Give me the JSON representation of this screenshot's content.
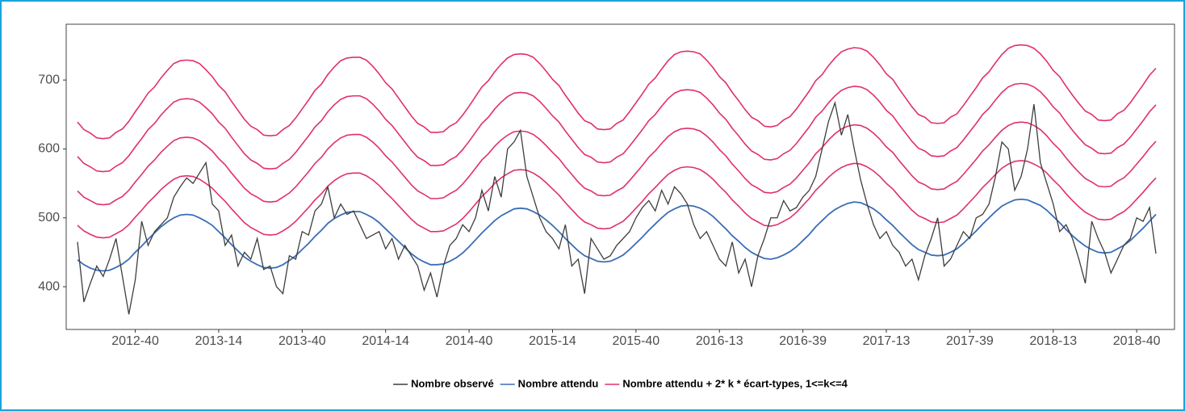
{
  "chart_data": {
    "type": "line",
    "categories": [
      null,
      null,
      null,
      null,
      null,
      null,
      null,
      null,
      null,
      "2012-40",
      null,
      null,
      null,
      null,
      null,
      null,
      null,
      null,
      null,
      null,
      null,
      null,
      "2013-14",
      null,
      null,
      null,
      null,
      null,
      null,
      null,
      null,
      null,
      null,
      null,
      null,
      "2013-40",
      null,
      null,
      null,
      null,
      null,
      null,
      null,
      null,
      null,
      null,
      null,
      null,
      "2014-14",
      null,
      null,
      null,
      null,
      null,
      null,
      null,
      null,
      null,
      null,
      null,
      null,
      "2014-40",
      null,
      null,
      null,
      null,
      null,
      null,
      null,
      null,
      null,
      null,
      null,
      null,
      "2015-14",
      null,
      null,
      null,
      null,
      null,
      null,
      null,
      null,
      null,
      null,
      null,
      null,
      "2015-40",
      null,
      null,
      null,
      null,
      null,
      null,
      null,
      null,
      null,
      null,
      null,
      null,
      "2016-13",
      null,
      null,
      null,
      null,
      null,
      null,
      null,
      null,
      null,
      null,
      null,
      null,
      "2016-39",
      null,
      null,
      null,
      null,
      null,
      null,
      null,
      null,
      null,
      null,
      null,
      null,
      "2017-13",
      null,
      null,
      null,
      null,
      null,
      null,
      null,
      null,
      null,
      null,
      null,
      null,
      "2017-39",
      null,
      null,
      null,
      null,
      null,
      null,
      null,
      null,
      null,
      null,
      null,
      null,
      "2018-13",
      null,
      null,
      null,
      null,
      null,
      null,
      null,
      null,
      null,
      null,
      null,
      null,
      "2018-40",
      null,
      null,
      null
    ],
    "series": [
      {
        "name": "Nombre observé",
        "color": "#3d3d3d",
        "values": [
          465,
          378,
          405,
          430,
          415,
          440,
          470,
          415,
          360,
          410,
          495,
          460,
          480,
          490,
          500,
          530,
          545,
          558,
          550,
          565,
          580,
          520,
          510,
          460,
          475,
          430,
          450,
          440,
          470,
          425,
          430,
          400,
          390,
          445,
          440,
          480,
          475,
          510,
          520,
          545,
          500,
          520,
          505,
          510,
          490,
          470,
          475,
          480,
          455,
          470,
          440,
          460,
          445,
          430,
          395,
          420,
          385,
          430,
          460,
          470,
          490,
          480,
          500,
          540,
          510,
          560,
          530,
          600,
          610,
          627,
          560,
          530,
          500,
          480,
          470,
          455,
          490,
          430,
          440,
          390,
          470,
          455,
          440,
          445,
          460,
          470,
          480,
          500,
          515,
          525,
          510,
          540,
          520,
          545,
          535,
          520,
          490,
          470,
          480,
          460,
          440,
          430,
          465,
          420,
          440,
          400,
          445,
          470,
          500,
          500,
          525,
          510,
          515,
          530,
          540,
          560,
          600,
          640,
          667,
          620,
          650,
          600,
          555,
          520,
          490,
          470,
          480,
          460,
          450,
          430,
          440,
          410,
          445,
          470,
          500,
          430,
          440,
          460,
          480,
          470,
          500,
          505,
          520,
          560,
          610,
          600,
          540,
          560,
          600,
          665,
          580,
          550,
          520,
          480,
          490,
          470,
          440,
          405,
          495,
          470,
          450,
          420,
          440,
          460,
          470,
          500,
          495,
          515,
          448
        ]
      },
      {
        "name": "Nombre attendu",
        "color": "#3a6db5",
        "values": [
          439,
          432,
          427,
          424,
          423,
          424,
          428,
          433,
          440,
          450,
          459,
          469,
          478,
          487,
          494,
          500,
          504,
          505,
          504,
          500,
          495,
          489,
          480,
          471,
          461,
          452,
          443,
          437,
          432,
          428,
          427,
          428,
          432,
          438,
          445,
          454,
          463,
          473,
          482,
          492,
          499,
          504,
          508,
          509,
          509,
          505,
          500,
          493,
          484,
          475,
          466,
          457,
          448,
          441,
          436,
          432,
          432,
          433,
          437,
          442,
          449,
          458,
          468,
          478,
          487,
          496,
          503,
          508,
          513,
          514,
          513,
          509,
          504,
          497,
          489,
          480,
          470,
          461,
          452,
          445,
          441,
          437,
          436,
          437,
          441,
          446,
          454,
          463,
          472,
          482,
          491,
          500,
          508,
          513,
          517,
          518,
          517,
          514,
          509,
          502,
          493,
          484,
          474,
          466,
          457,
          450,
          445,
          441,
          440,
          442,
          446,
          451,
          458,
          467,
          476,
          487,
          496,
          505,
          512,
          517,
          521,
          523,
          522,
          518,
          513,
          506,
          497,
          489,
          479,
          470,
          461,
          454,
          450,
          446,
          445,
          446,
          450,
          455,
          463,
          472,
          481,
          491,
          500,
          509,
          517,
          522,
          526,
          527,
          526,
          522,
          518,
          511,
          502,
          493,
          483,
          474,
          466,
          459,
          454,
          450,
          449,
          450,
          455,
          460,
          467,
          476,
          485,
          495,
          505
        ]
      }
    ],
    "bands": {
      "name": "Nombre attendu + 2* k * écart-types, 1<=k<=4",
      "color": "#e0306a",
      "lines": [
        [
          489,
          481,
          476,
          472,
          471,
          472,
          477,
          482,
          490,
          501,
          511,
          522,
          531,
          541,
          549,
          556,
          560,
          561,
          560,
          556,
          550,
          543,
          533,
          524,
          513,
          503,
          493,
          486,
          481,
          476,
          475,
          476,
          481,
          487,
          495,
          505,
          515,
          526,
          535,
          546,
          554,
          560,
          564,
          565,
          565,
          561,
          555,
          547,
          537,
          528,
          518,
          508,
          498,
          490,
          485,
          480,
          480,
          481,
          486,
          491,
          499,
          509,
          520,
          531,
          540,
          550,
          558,
          564,
          569,
          570,
          569,
          565,
          559,
          551,
          542,
          533,
          522,
          512,
          502,
          494,
          490,
          485,
          484,
          485,
          490,
          495,
          504,
          514,
          524,
          535,
          544,
          554,
          563,
          569,
          573,
          574,
          573,
          570,
          564,
          556,
          546,
          537,
          526,
          517,
          507,
          499,
          494,
          489,
          488,
          490,
          495,
          500,
          508,
          518,
          528,
          540,
          549,
          559,
          567,
          573,
          577,
          579,
          578,
          574,
          568,
          560,
          550,
          542,
          531,
          521,
          511,
          503,
          499,
          494,
          493,
          494,
          499,
          504,
          513,
          523,
          533,
          544,
          553,
          563,
          572,
          578,
          582,
          583,
          582,
          578,
          573,
          565,
          555,
          546,
          535,
          525,
          516,
          508,
          503,
          498,
          497,
          498,
          504,
          509,
          517,
          527,
          537,
          548,
          558
        ],
        [
          539,
          530,
          525,
          520,
          519,
          520,
          526,
          531,
          540,
          552,
          563,
          575,
          584,
          595,
          604,
          612,
          616,
          617,
          616,
          612,
          605,
          597,
          586,
          577,
          565,
          554,
          543,
          535,
          530,
          524,
          523,
          524,
          530,
          536,
          545,
          556,
          567,
          579,
          588,
          600,
          609,
          616,
          620,
          621,
          621,
          617,
          610,
          601,
          590,
          581,
          570,
          559,
          548,
          539,
          534,
          528,
          528,
          529,
          535,
          540,
          549,
          560,
          572,
          584,
          593,
          604,
          613,
          620,
          625,
          626,
          625,
          621,
          614,
          605,
          595,
          586,
          574,
          563,
          552,
          543,
          539,
          533,
          532,
          533,
          539,
          544,
          554,
          565,
          576,
          588,
          597,
          608,
          618,
          625,
          629,
          630,
          629,
          626,
          619,
          610,
          599,
          590,
          578,
          568,
          557,
          548,
          543,
          537,
          536,
          538,
          544,
          549,
          558,
          569,
          580,
          593,
          602,
          613,
          622,
          629,
          633,
          635,
          634,
          630,
          623,
          614,
          603,
          595,
          583,
          572,
          561,
          552,
          548,
          542,
          541,
          542,
          548,
          553,
          563,
          574,
          585,
          597,
          606,
          617,
          627,
          634,
          638,
          639,
          638,
          634,
          628,
          619,
          608,
          599,
          587,
          576,
          566,
          557,
          552,
          546,
          545,
          546,
          553,
          558,
          567,
          578,
          589,
          601,
          611
        ],
        [
          589,
          579,
          574,
          568,
          567,
          568,
          575,
          580,
          590,
          603,
          615,
          628,
          637,
          649,
          659,
          668,
          672,
          673,
          672,
          668,
          660,
          651,
          639,
          630,
          617,
          605,
          593,
          584,
          579,
          572,
          571,
          572,
          579,
          585,
          595,
          607,
          619,
          632,
          641,
          654,
          664,
          672,
          676,
          677,
          677,
          673,
          665,
          655,
          643,
          634,
          622,
          610,
          598,
          588,
          583,
          576,
          576,
          577,
          584,
          589,
          599,
          611,
          624,
          637,
          646,
          658,
          668,
          676,
          681,
          682,
          681,
          677,
          669,
          659,
          648,
          639,
          626,
          614,
          602,
          592,
          588,
          581,
          580,
          581,
          588,
          593,
          604,
          616,
          628,
          641,
          650,
          662,
          673,
          681,
          685,
          686,
          685,
          682,
          674,
          664,
          652,
          643,
          630,
          619,
          607,
          597,
          592,
          585,
          584,
          586,
          593,
          598,
          608,
          620,
          632,
          646,
          655,
          667,
          677,
          685,
          689,
          691,
          690,
          686,
          678,
          668,
          656,
          648,
          635,
          623,
          611,
          601,
          597,
          590,
          589,
          590,
          597,
          602,
          613,
          625,
          637,
          650,
          659,
          671,
          682,
          690,
          694,
          695,
          694,
          690,
          683,
          673,
          661,
          652,
          639,
          627,
          616,
          606,
          601,
          594,
          593,
          594,
          602,
          607,
          617,
          629,
          641,
          654,
          664
        ],
        [
          639,
          628,
          623,
          616,
          615,
          616,
          624,
          629,
          640,
          654,
          667,
          681,
          690,
          703,
          714,
          724,
          728,
          729,
          728,
          724,
          715,
          705,
          692,
          683,
          669,
          656,
          643,
          633,
          628,
          620,
          619,
          620,
          628,
          634,
          645,
          658,
          671,
          685,
          694,
          708,
          719,
          728,
          732,
          733,
          733,
          729,
          720,
          709,
          696,
          687,
          674,
          661,
          648,
          637,
          632,
          624,
          624,
          625,
          633,
          638,
          649,
          662,
          676,
          690,
          699,
          712,
          723,
          732,
          737,
          738,
          737,
          733,
          724,
          713,
          701,
          692,
          678,
          665,
          652,
          641,
          637,
          629,
          628,
          629,
          637,
          642,
          654,
          667,
          680,
          694,
          703,
          716,
          728,
          737,
          741,
          742,
          741,
          738,
          729,
          718,
          705,
          696,
          682,
          670,
          657,
          646,
          641,
          633,
          632,
          634,
          642,
          647,
          658,
          671,
          684,
          699,
          708,
          721,
          732,
          741,
          745,
          747,
          746,
          742,
          733,
          722,
          709,
          701,
          687,
          674,
          661,
          650,
          646,
          638,
          637,
          638,
          646,
          651,
          663,
          676,
          689,
          703,
          712,
          725,
          737,
          746,
          750,
          751,
          750,
          746,
          738,
          727,
          714,
          705,
          691,
          678,
          666,
          655,
          650,
          642,
          641,
          642,
          651,
          656,
          667,
          680,
          693,
          707,
          717
        ]
      ]
    },
    "ylim": [
      338,
      781
    ],
    "yticks": [
      400,
      500,
      600,
      700
    ],
    "grid": false,
    "legend": "bottom"
  }
}
